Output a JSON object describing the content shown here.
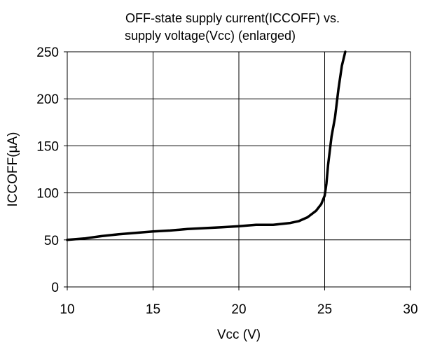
{
  "chart_data": {
    "type": "line",
    "title_line1": "OFF-state supply current(ICCOFF) vs.",
    "title_line2": "supply voltage(Vcc)  (enlarged)",
    "xlabel": "Vcc (V)",
    "ylabel": "ICCOFF(µA)",
    "xlim": [
      10,
      30
    ],
    "ylim": [
      0,
      250
    ],
    "x_ticks": [
      10,
      15,
      20,
      25,
      30
    ],
    "y_ticks": [
      0,
      50,
      100,
      150,
      200,
      250
    ],
    "x_tick_labels": [
      "10",
      "15",
      "20",
      "25",
      "30"
    ],
    "y_tick_labels": [
      "0",
      "50",
      "100",
      "150",
      "200",
      "250"
    ],
    "grid": true,
    "series": [
      {
        "color": "#000000",
        "x": [
          10,
          11,
          12,
          13,
          14,
          15,
          16,
          17,
          18,
          19,
          20,
          21,
          22,
          23,
          23.5,
          24,
          24.5,
          24.8,
          25.0,
          25.1,
          25.2,
          25.4,
          25.6,
          25.8,
          26.0,
          26.2
        ],
        "y": [
          50,
          51.5,
          54,
          56,
          57.5,
          59,
          60,
          61.5,
          62.5,
          63.5,
          64.5,
          66,
          66,
          68,
          70,
          74,
          81,
          88,
          97,
          110,
          130,
          160,
          180,
          210,
          235,
          250
        ]
      }
    ]
  }
}
